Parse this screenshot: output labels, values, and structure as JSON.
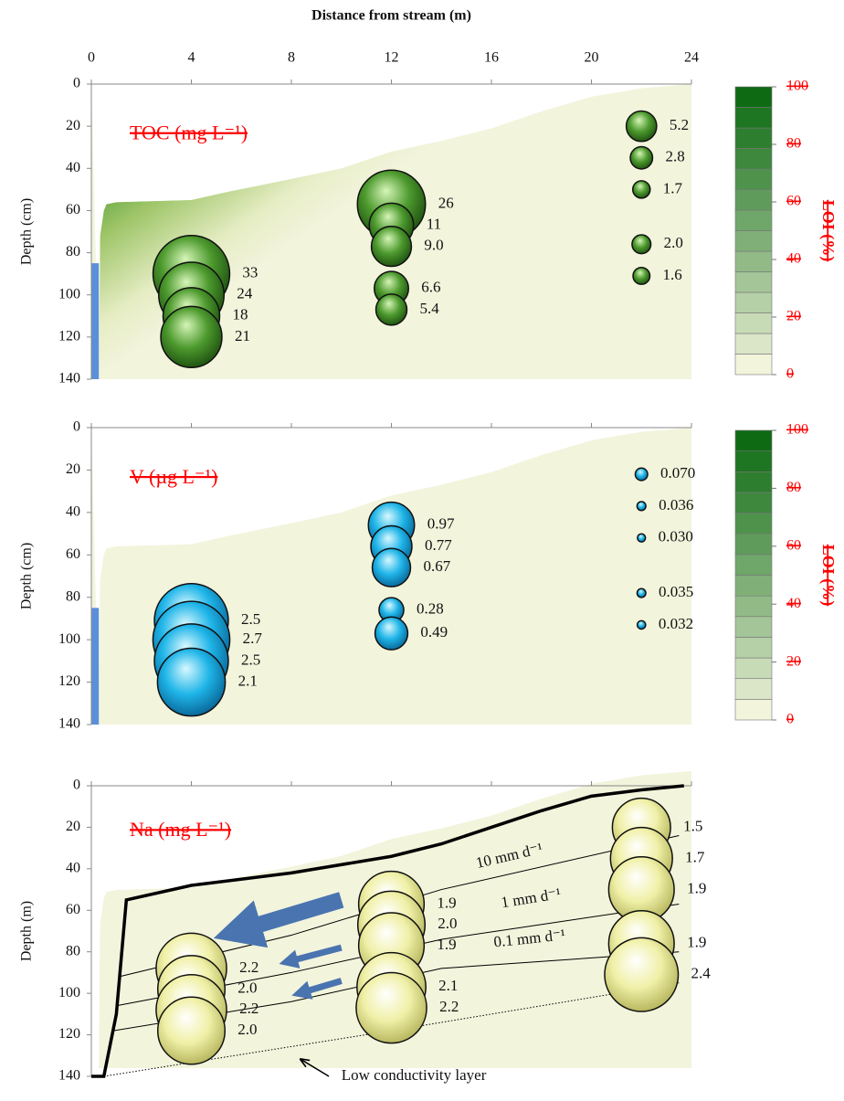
{
  "chart_data": [
    {
      "type": "bubble",
      "title": "TOC (mg L⁻¹)",
      "xlabel": "Distance from stream (m)",
      "ylabel": "Depth (cm)",
      "xlim": [
        0,
        24
      ],
      "xticks": [
        0,
        4,
        8,
        12,
        16,
        20,
        24
      ],
      "show_xtick_labels": true,
      "ylim": [
        0,
        140
      ],
      "yticks": [
        0,
        20,
        40,
        60,
        80,
        100,
        120,
        140
      ],
      "y_inverted": true,
      "color": "#4d9a2e",
      "x": [
        4,
        4,
        4,
        4,
        12,
        12,
        12,
        12,
        12,
        22,
        22,
        22,
        22,
        22
      ],
      "y": [
        90,
        100,
        110,
        120,
        57,
        67,
        77,
        97,
        107,
        20,
        35,
        50,
        76,
        91
      ],
      "values": [
        33,
        24,
        18,
        21,
        26,
        11,
        9,
        6.6,
        5.4,
        5.2,
        2.8,
        1.7,
        2,
        1.6
      ],
      "value_labels": [
        "33",
        "24",
        "18",
        "21",
        "26",
        "11",
        "9.0",
        "6.6",
        "5.4",
        "5.2",
        "2.8",
        "1.7",
        "2.0",
        "1.6"
      ],
      "colorbar": {
        "label": "LOI (%)",
        "lim": [
          0,
          100
        ],
        "ticks": [
          0,
          20,
          40,
          60,
          80,
          100
        ]
      }
    },
    {
      "type": "bubble",
      "title": "V (µg L⁻¹)",
      "ylabel": "Depth (cm)",
      "xlim": [
        0,
        24
      ],
      "xticks": [
        0,
        4,
        8,
        12,
        16,
        20,
        24
      ],
      "show_xtick_labels": false,
      "ylim": [
        0,
        140
      ],
      "yticks": [
        0,
        20,
        40,
        60,
        80,
        100,
        120,
        140
      ],
      "y_inverted": true,
      "color": "#1fb5e8",
      "x": [
        4,
        4,
        4,
        4,
        12,
        12,
        12,
        12,
        12,
        22,
        22,
        22,
        22,
        22
      ],
      "y": [
        91,
        100,
        110,
        120,
        46,
        56,
        66,
        86,
        97,
        22,
        37,
        52,
        78,
        93
      ],
      "values": [
        2.5,
        2.7,
        2.5,
        2.1,
        0.97,
        0.77,
        0.67,
        0.28,
        0.49,
        0.07,
        0.036,
        0.03,
        0.035,
        0.032
      ],
      "value_labels": [
        "2.5",
        "2.7",
        "2.5",
        "2.1",
        "0.97",
        "0.77",
        "0.67",
        "0.28",
        "0.49",
        "0.070",
        "0.036",
        "0.030",
        "0.035",
        "0.032"
      ],
      "colorbar": {
        "label": "LOI (%)",
        "lim": [
          0,
          100
        ],
        "ticks": [
          0,
          20,
          40,
          60,
          80,
          100
        ]
      }
    },
    {
      "type": "bubble",
      "title": "Na (mg L⁻¹)",
      "ylabel": "Depth (m)",
      "xlim": [
        0,
        24
      ],
      "xticks": [
        0,
        4,
        8,
        12,
        16,
        20,
        24
      ],
      "show_xtick_labels": false,
      "ylim": [
        0,
        140
      ],
      "yticks": [
        0,
        20,
        40,
        60,
        80,
        100,
        120,
        140
      ],
      "y_inverted": true,
      "color": "#f0f0a8",
      "x": [
        4,
        4,
        4,
        4,
        12,
        12,
        12,
        12,
        12,
        22,
        22,
        22,
        22,
        22
      ],
      "y": [
        88,
        98,
        108,
        118,
        57,
        67,
        77,
        97,
        107,
        20,
        35,
        50,
        76,
        91
      ],
      "values": [
        2.2,
        2,
        2.2,
        2,
        1.9,
        2,
        1.9,
        2.1,
        2.2,
        1.5,
        1.7,
        1.9,
        1.9,
        2.4
      ],
      "value_labels": [
        "2.2",
        "2.0",
        "2.2",
        "2.0",
        "1.9",
        "2.0",
        "1.9",
        "2.1",
        "2.2",
        "1.5",
        "1.7",
        "1.9",
        "1.9",
        "2.4"
      ],
      "annotations": [
        "10 mm d⁻¹",
        "1 mm d⁻¹",
        "0.1 mm d⁻¹",
        "Low conductivity layer"
      ]
    }
  ]
}
